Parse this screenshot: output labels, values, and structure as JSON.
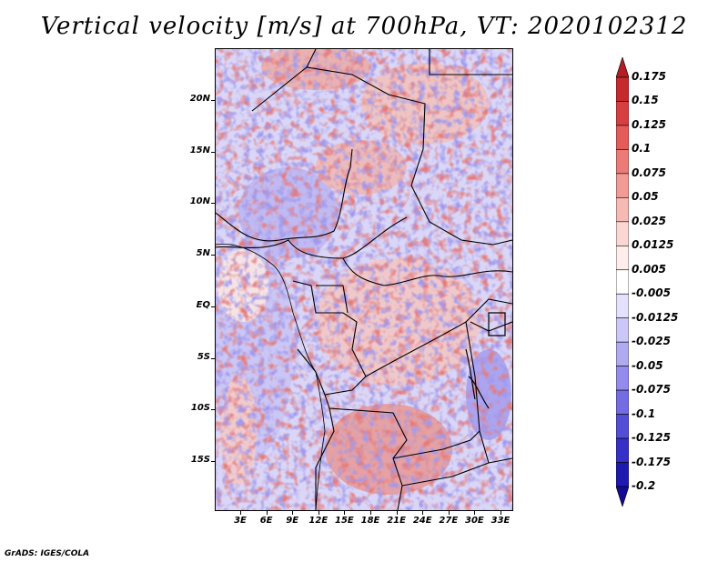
{
  "title": "Vertical velocity [m/s] at 700hPa, VT: 2020102312",
  "map": {
    "lat_labels": [
      "20N",
      "15N",
      "10N",
      "5N",
      "EQ",
      "5S",
      "10S",
      "15S"
    ],
    "lon_labels": [
      "3E",
      "6E",
      "9E",
      "12E",
      "15E",
      "18E",
      "21E",
      "24E",
      "27E",
      "30E",
      "33E"
    ]
  },
  "colorbar": {
    "levels": [
      "0.175",
      "0.15",
      "0.125",
      "0.1",
      "0.075",
      "0.05",
      "0.025",
      "0.0125",
      "0.005",
      "-0.005",
      "-0.0125",
      "-0.025",
      "-0.05",
      "-0.075",
      "-0.1",
      "-0.125",
      "-0.175",
      "-0.2"
    ],
    "colors": [
      "#b11f23",
      "#c52a2d",
      "#d63f3f",
      "#e45c5a",
      "#ec7b77",
      "#f29a95",
      "#f7b9b4",
      "#fbd7d3",
      "#fdeeec",
      "#ffffff",
      "#e3e1fb",
      "#cbc7f6",
      "#b0aaf1",
      "#938ceb",
      "#746de2",
      "#544dd6",
      "#3730c6",
      "#2019b0",
      "#120b94"
    ]
  },
  "footer": "GrADS: IGES/COLA"
}
